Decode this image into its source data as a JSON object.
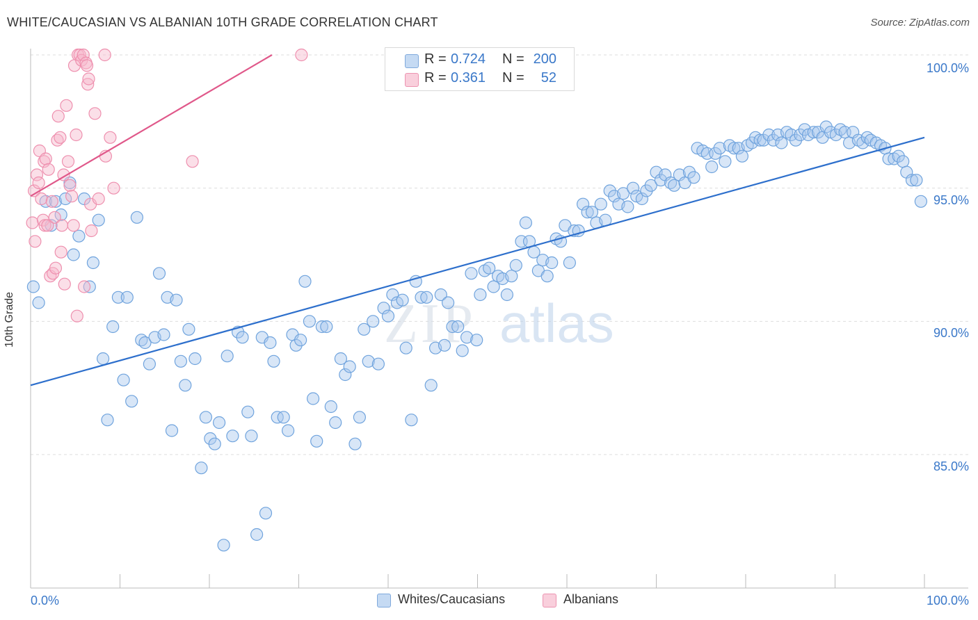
{
  "title": "WHITE/CAUCASIAN VS ALBANIAN 10TH GRADE CORRELATION CHART",
  "source": "Source: ZipAtlas.com",
  "watermark": {
    "zip": "ZIP",
    "atlas": "atlas"
  },
  "legend": {
    "rows": [
      {
        "r_label": "R =",
        "r_value": "0.724",
        "n_label": "N =",
        "n_value": "200",
        "color": "#a9c8ee"
      },
      {
        "r_label": "R =",
        "r_value": "0.361",
        "n_label": "N =",
        "n_value": "52",
        "color": "#f6b7cb"
      }
    ]
  },
  "bottom_legend": {
    "items": [
      {
        "label": "Whites/Caucasians",
        "color": "#a9c8ee"
      },
      {
        "label": "Albanians",
        "color": "#f6b7cb"
      }
    ]
  },
  "chart_data": {
    "type": "scatter",
    "title": "WHITE/CAUCASIAN VS ALBANIAN 10TH GRADE CORRELATION CHART",
    "xlabel": "",
    "ylabel": "10th Grade",
    "xlim": [
      0,
      100
    ],
    "ylim": [
      80.5,
      100.8
    ],
    "x_tick_labels": [
      "0.0%",
      "100.0%"
    ],
    "y_ticks": [
      85,
      90,
      95,
      100
    ],
    "y_tick_labels": [
      "85.0%",
      "90.0%",
      "95.0%",
      "100.0%"
    ],
    "grid": true,
    "legend_position": "top-center",
    "series": [
      {
        "name": "Whites/Caucasians",
        "color": "#6fa3dd",
        "fill": "#a9c8ee",
        "trend": {
          "x": [
            0,
            100
          ],
          "y": [
            87.6,
            96.9
          ],
          "color": "#2d6fcc"
        },
        "points": [
          [
            0.3,
            91.3
          ],
          [
            0.9,
            90.7
          ],
          [
            1.7,
            94.5
          ],
          [
            2.3,
            93.6
          ],
          [
            2.8,
            94.5
          ],
          [
            3.4,
            94.0
          ],
          [
            3.9,
            94.6
          ],
          [
            4.4,
            95.2
          ],
          [
            4.8,
            92.5
          ],
          [
            5.4,
            93.2
          ],
          [
            6.0,
            94.6
          ],
          [
            6.6,
            91.3
          ],
          [
            7.0,
            92.2
          ],
          [
            7.6,
            93.8
          ],
          [
            8.1,
            88.6
          ],
          [
            8.6,
            86.3
          ],
          [
            9.2,
            89.8
          ],
          [
            9.8,
            90.9
          ],
          [
            10.4,
            87.8
          ],
          [
            10.8,
            90.9
          ],
          [
            11.3,
            87.0
          ],
          [
            11.9,
            93.9
          ],
          [
            12.4,
            89.3
          ],
          [
            12.8,
            89.2
          ],
          [
            13.3,
            88.4
          ],
          [
            13.9,
            89.4
          ],
          [
            14.4,
            91.8
          ],
          [
            14.9,
            89.5
          ],
          [
            15.3,
            90.9
          ],
          [
            15.8,
            85.9
          ],
          [
            16.3,
            90.8
          ],
          [
            16.8,
            88.5
          ],
          [
            17.3,
            87.6
          ],
          [
            17.7,
            89.7
          ],
          [
            18.4,
            88.6
          ],
          [
            19.1,
            84.5
          ],
          [
            19.6,
            86.4
          ],
          [
            20.1,
            85.6
          ],
          [
            20.6,
            85.4
          ],
          [
            21.1,
            86.2
          ],
          [
            21.6,
            81.6
          ],
          [
            22.0,
            88.7
          ],
          [
            22.6,
            85.7
          ],
          [
            23.2,
            89.6
          ],
          [
            23.7,
            89.4
          ],
          [
            24.3,
            86.6
          ],
          [
            24.7,
            85.7
          ],
          [
            25.3,
            82.0
          ],
          [
            25.9,
            89.4
          ],
          [
            26.3,
            82.8
          ],
          [
            26.8,
            89.2
          ],
          [
            27.2,
            88.5
          ],
          [
            27.6,
            86.4
          ],
          [
            28.3,
            86.4
          ],
          [
            28.8,
            85.9
          ],
          [
            29.3,
            89.5
          ],
          [
            29.7,
            89.1
          ],
          [
            30.2,
            89.3
          ],
          [
            30.7,
            91.5
          ],
          [
            31.2,
            90.0
          ],
          [
            31.6,
            87.1
          ],
          [
            32.0,
            85.5
          ],
          [
            32.6,
            89.8
          ],
          [
            33.1,
            89.8
          ],
          [
            33.6,
            86.8
          ],
          [
            34.1,
            86.2
          ],
          [
            34.7,
            88.6
          ],
          [
            35.2,
            88.0
          ],
          [
            35.7,
            88.3
          ],
          [
            36.3,
            85.4
          ],
          [
            36.8,
            86.4
          ],
          [
            37.3,
            89.7
          ],
          [
            37.8,
            88.5
          ],
          [
            38.3,
            90.0
          ],
          [
            38.9,
            88.4
          ],
          [
            39.5,
            90.5
          ],
          [
            40.0,
            90.2
          ],
          [
            40.5,
            91.0
          ],
          [
            41.0,
            90.7
          ],
          [
            41.6,
            90.8
          ],
          [
            42.0,
            89.0
          ],
          [
            42.6,
            86.3
          ],
          [
            43.1,
            91.5
          ],
          [
            43.7,
            90.9
          ],
          [
            44.3,
            90.9
          ],
          [
            44.8,
            87.6
          ],
          [
            45.3,
            89.0
          ],
          [
            45.9,
            91.0
          ],
          [
            46.3,
            89.1
          ],
          [
            46.7,
            90.7
          ],
          [
            47.2,
            89.8
          ],
          [
            47.8,
            89.8
          ],
          [
            48.3,
            88.9
          ],
          [
            48.8,
            89.4
          ],
          [
            49.3,
            91.8
          ],
          [
            49.9,
            89.3
          ],
          [
            50.3,
            91.0
          ],
          [
            50.8,
            91.9
          ],
          [
            51.3,
            92.0
          ],
          [
            51.8,
            91.3
          ],
          [
            52.3,
            91.7
          ],
          [
            52.8,
            91.6
          ],
          [
            53.3,
            91.0
          ],
          [
            53.8,
            91.7
          ],
          [
            54.3,
            92.1
          ],
          [
            54.9,
            93.0
          ],
          [
            55.4,
            93.7
          ],
          [
            55.8,
            93.0
          ],
          [
            56.3,
            92.6
          ],
          [
            56.8,
            91.9
          ],
          [
            57.3,
            92.3
          ],
          [
            57.8,
            91.7
          ],
          [
            58.3,
            92.2
          ],
          [
            58.8,
            93.1
          ],
          [
            59.3,
            93.0
          ],
          [
            59.8,
            93.6
          ],
          [
            60.3,
            92.2
          ],
          [
            60.8,
            93.4
          ],
          [
            61.3,
            93.4
          ],
          [
            61.8,
            94.4
          ],
          [
            62.3,
            94.1
          ],
          [
            62.8,
            94.1
          ],
          [
            63.3,
            93.7
          ],
          [
            63.8,
            94.4
          ],
          [
            64.3,
            93.8
          ],
          [
            64.8,
            94.9
          ],
          [
            65.3,
            94.7
          ],
          [
            65.8,
            94.4
          ],
          [
            66.3,
            94.8
          ],
          [
            66.8,
            94.3
          ],
          [
            67.4,
            95.0
          ],
          [
            67.8,
            94.7
          ],
          [
            68.4,
            94.6
          ],
          [
            68.9,
            94.9
          ],
          [
            69.4,
            95.1
          ],
          [
            70.0,
            95.6
          ],
          [
            70.5,
            95.3
          ],
          [
            71.0,
            95.5
          ],
          [
            71.6,
            95.2
          ],
          [
            72.0,
            95.1
          ],
          [
            72.6,
            95.5
          ],
          [
            73.2,
            95.2
          ],
          [
            73.7,
            95.6
          ],
          [
            74.2,
            95.4
          ],
          [
            74.6,
            96.5
          ],
          [
            75.2,
            96.4
          ],
          [
            75.7,
            96.3
          ],
          [
            76.2,
            95.8
          ],
          [
            76.6,
            96.3
          ],
          [
            77.1,
            96.5
          ],
          [
            77.7,
            96.0
          ],
          [
            78.2,
            96.6
          ],
          [
            78.7,
            96.5
          ],
          [
            79.2,
            96.5
          ],
          [
            79.6,
            96.2
          ],
          [
            80.2,
            96.6
          ],
          [
            80.7,
            96.7
          ],
          [
            81.1,
            96.9
          ],
          [
            81.6,
            96.8
          ],
          [
            82.0,
            96.8
          ],
          [
            82.6,
            97.0
          ],
          [
            83.1,
            96.8
          ],
          [
            83.6,
            97.0
          ],
          [
            84.0,
            96.7
          ],
          [
            84.6,
            97.1
          ],
          [
            85.1,
            97.0
          ],
          [
            85.6,
            96.8
          ],
          [
            86.1,
            97.0
          ],
          [
            86.6,
            97.2
          ],
          [
            87.0,
            97.0
          ],
          [
            87.6,
            97.1
          ],
          [
            88.1,
            97.1
          ],
          [
            88.6,
            96.9
          ],
          [
            89.0,
            97.3
          ],
          [
            89.5,
            97.1
          ],
          [
            90.1,
            97.0
          ],
          [
            90.6,
            97.2
          ],
          [
            91.1,
            97.1
          ],
          [
            91.6,
            96.7
          ],
          [
            92.0,
            97.1
          ],
          [
            92.6,
            96.8
          ],
          [
            93.1,
            96.7
          ],
          [
            93.6,
            96.9
          ],
          [
            94.0,
            96.8
          ],
          [
            94.6,
            96.7
          ],
          [
            95.1,
            96.6
          ],
          [
            95.6,
            96.5
          ],
          [
            96.0,
            96.1
          ],
          [
            96.6,
            96.1
          ],
          [
            97.1,
            96.2
          ],
          [
            97.6,
            96.0
          ],
          [
            98.0,
            95.6
          ],
          [
            98.6,
            95.3
          ],
          [
            99.1,
            95.3
          ],
          [
            99.6,
            94.5
          ]
        ]
      },
      {
        "name": "Albanians",
        "color": "#ee8fae",
        "fill": "#f6b7cb",
        "trend": {
          "x": [
            0,
            27
          ],
          "y": [
            94.7,
            100.0
          ],
          "color": "#e0588a"
        },
        "points": [
          [
            0.2,
            93.7
          ],
          [
            0.4,
            94.9
          ],
          [
            0.5,
            93.0
          ],
          [
            0.7,
            95.5
          ],
          [
            0.9,
            95.2
          ],
          [
            1.0,
            96.4
          ],
          [
            1.2,
            94.6
          ],
          [
            1.4,
            93.8
          ],
          [
            1.5,
            96.0
          ],
          [
            1.6,
            93.6
          ],
          [
            1.7,
            96.1
          ],
          [
            1.9,
            93.6
          ],
          [
            2.0,
            95.7
          ],
          [
            2.2,
            91.7
          ],
          [
            2.4,
            94.5
          ],
          [
            2.5,
            91.8
          ],
          [
            2.7,
            93.9
          ],
          [
            2.8,
            92.0
          ],
          [
            3.0,
            96.8
          ],
          [
            3.1,
            97.7
          ],
          [
            3.3,
            96.9
          ],
          [
            3.4,
            92.6
          ],
          [
            3.5,
            93.6
          ],
          [
            3.7,
            95.5
          ],
          [
            3.8,
            91.4
          ],
          [
            4.0,
            98.1
          ],
          [
            4.2,
            96.0
          ],
          [
            4.4,
            95.1
          ],
          [
            4.6,
            94.7
          ],
          [
            4.8,
            93.6
          ],
          [
            4.9,
            99.6
          ],
          [
            5.1,
            97.0
          ],
          [
            5.2,
            90.2
          ],
          [
            5.3,
            100.0
          ],
          [
            5.5,
            100.0
          ],
          [
            5.7,
            99.8
          ],
          [
            5.9,
            100.0
          ],
          [
            6.0,
            91.3
          ],
          [
            6.2,
            99.7
          ],
          [
            6.3,
            99.6
          ],
          [
            6.4,
            98.9
          ],
          [
            6.5,
            99.1
          ],
          [
            6.7,
            94.4
          ],
          [
            6.8,
            93.4
          ],
          [
            7.2,
            97.8
          ],
          [
            7.6,
            94.6
          ],
          [
            8.3,
            100.0
          ],
          [
            8.4,
            96.2
          ],
          [
            8.9,
            96.9
          ],
          [
            9.3,
            95.0
          ],
          [
            18.1,
            96.0
          ],
          [
            30.3,
            100.0
          ]
        ]
      }
    ]
  }
}
